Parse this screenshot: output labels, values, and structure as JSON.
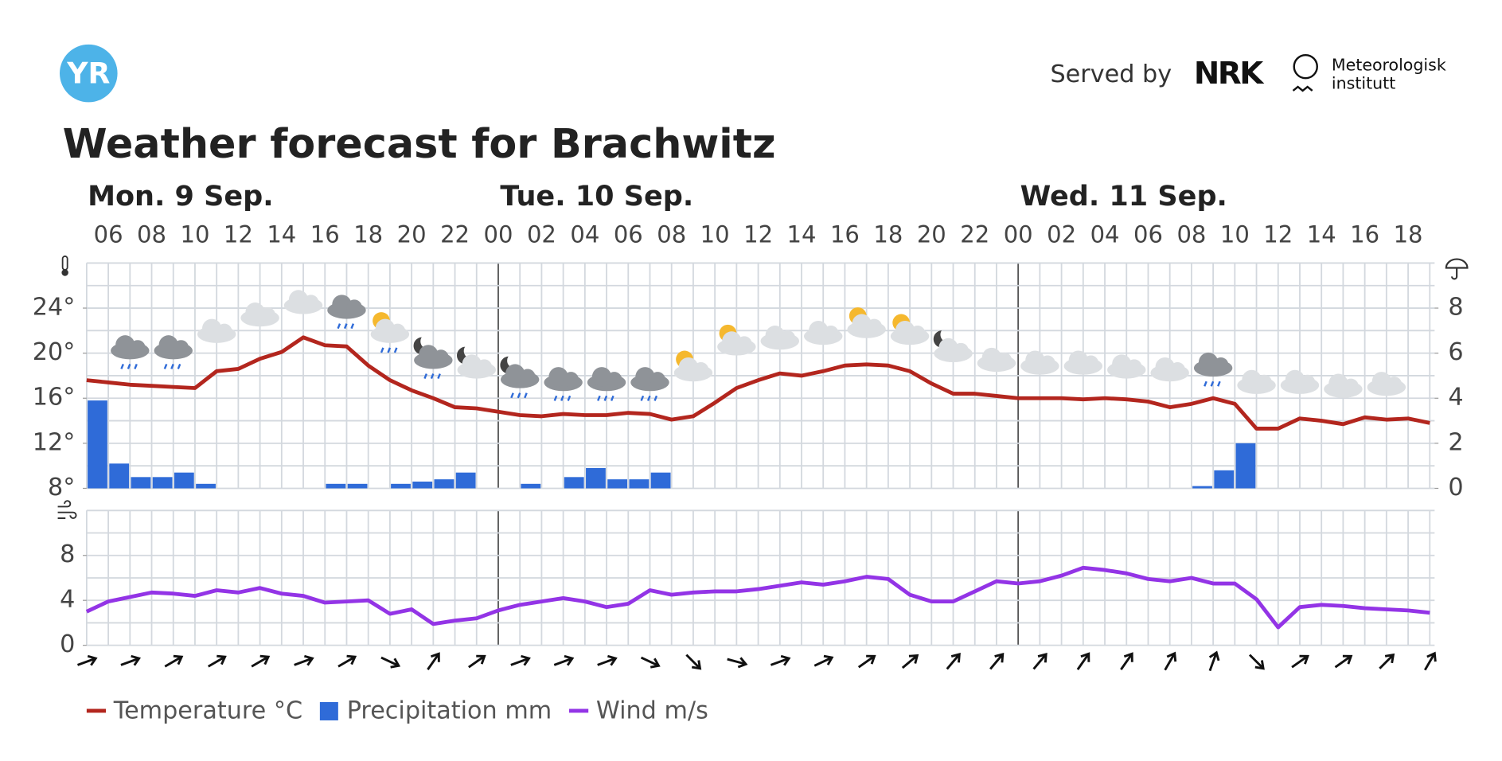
{
  "header": {
    "logo": "YR",
    "served_by": "Served by",
    "nrk": "NRK",
    "met": [
      "Meteorologisk",
      "institutt"
    ]
  },
  "title": "Weather forecast for Brachwitz",
  "days": [
    "Mon. 9 Sep.",
    "Tue. 10 Sep.",
    "Wed. 11 Sep."
  ],
  "hours": [
    "06",
    "08",
    "10",
    "12",
    "14",
    "16",
    "18",
    "20",
    "22",
    "00",
    "02",
    "04",
    "06",
    "08",
    "10",
    "12",
    "14",
    "16",
    "18",
    "20",
    "22",
    "00",
    "02",
    "04",
    "06",
    "08",
    "10",
    "12",
    "14",
    "16",
    "18"
  ],
  "chart_data": [
    {
      "type": "line",
      "series": [
        {
          "name": "Temperature °C",
          "color": "#b3261e",
          "values": [
            17.6,
            17.4,
            17.2,
            17.1,
            17.0,
            16.9,
            18.4,
            18.6,
            19.5,
            20.1,
            21.4,
            20.7,
            20.6,
            18.9,
            17.6,
            16.7,
            16.0,
            15.2,
            15.1,
            14.8,
            14.5,
            14.4,
            14.6,
            14.5,
            14.5,
            14.7,
            14.6,
            14.1,
            14.4,
            15.6,
            16.9,
            17.6,
            18.2,
            18.0,
            18.4,
            18.9,
            19.0,
            18.9,
            18.4,
            17.3,
            16.4,
            16.4,
            16.2,
            16.0,
            16.0,
            16.0,
            15.9,
            16.0,
            15.9,
            15.7,
            15.2,
            15.5,
            16.0,
            15.5,
            13.3,
            13.3,
            14.2,
            14.0,
            13.7,
            14.3,
            14.1,
            14.2,
            13.8
          ]
        },
        {
          "name": "Precipitation mm",
          "type": "bar",
          "axis": "y2",
          "color": "#2f6bd8",
          "values": [
            3.9,
            1.1,
            0.5,
            0.5,
            0.7,
            0.2,
            0,
            0,
            0,
            0,
            0,
            0.2,
            0.2,
            0,
            0.2,
            0.3,
            0.4,
            0.7,
            0,
            0,
            0.2,
            0,
            0.5,
            0.9,
            0.4,
            0.4,
            0.7,
            0,
            0,
            0,
            0,
            0,
            0,
            0,
            0,
            0,
            0,
            0,
            0,
            0,
            0,
            0,
            0,
            0,
            0,
            0,
            0,
            0,
            0,
            0,
            0,
            0.1,
            0.8,
            2.0,
            0,
            0,
            0,
            0,
            0,
            0,
            0,
            0
          ]
        }
      ],
      "ylim": [
        8,
        28
      ],
      "yticks": [
        {
          "value": 8,
          "label": "8°"
        },
        {
          "value": 12,
          "label": "12°"
        },
        {
          "value": 16,
          "label": "16°"
        },
        {
          "value": 20,
          "label": "20°"
        },
        {
          "value": 24,
          "label": "24°"
        }
      ],
      "ygrid": [
        8,
        10,
        12,
        14,
        16,
        18,
        20,
        22,
        24,
        26,
        28
      ],
      "y2lim": [
        0,
        10
      ],
      "y2ticks": [
        0,
        2,
        4,
        6,
        8
      ]
    },
    {
      "type": "line",
      "series": [
        {
          "name": "Wind m/s",
          "color": "#9334e6",
          "values": [
            3.0,
            3.9,
            4.3,
            4.7,
            4.6,
            4.4,
            4.9,
            4.7,
            5.1,
            4.6,
            4.4,
            3.8,
            3.9,
            4.0,
            2.8,
            3.2,
            1.9,
            2.2,
            2.4,
            3.1,
            3.6,
            3.9,
            4.2,
            3.9,
            3.4,
            3.7,
            4.9,
            4.5,
            4.7,
            4.8,
            4.8,
            5.0,
            5.3,
            5.6,
            5.4,
            5.7,
            6.1,
            5.9,
            4.5,
            3.9,
            3.9,
            4.8,
            5.7,
            5.5,
            5.7,
            6.2,
            6.9,
            6.7,
            6.4,
            5.9,
            5.7,
            6.0,
            5.5,
            5.5,
            4.1,
            1.6,
            3.4,
            3.6,
            3.5,
            3.3,
            3.2,
            3.1,
            2.9
          ],
          "directions": [
            70,
            70,
            60,
            60,
            60,
            70,
            60,
            115,
            35,
            55,
            70,
            70,
            70,
            115,
            135,
            105,
            70,
            65,
            55,
            50,
            40,
            40,
            40,
            35,
            35,
            30,
            20,
            135,
            55,
            55,
            45,
            30
          ]
        }
      ],
      "ylim": [
        0,
        12
      ],
      "yticks": [
        0,
        4,
        8
      ],
      "ygrid": [
        0,
        2,
        4,
        6,
        8,
        10,
        12
      ]
    }
  ]
}
